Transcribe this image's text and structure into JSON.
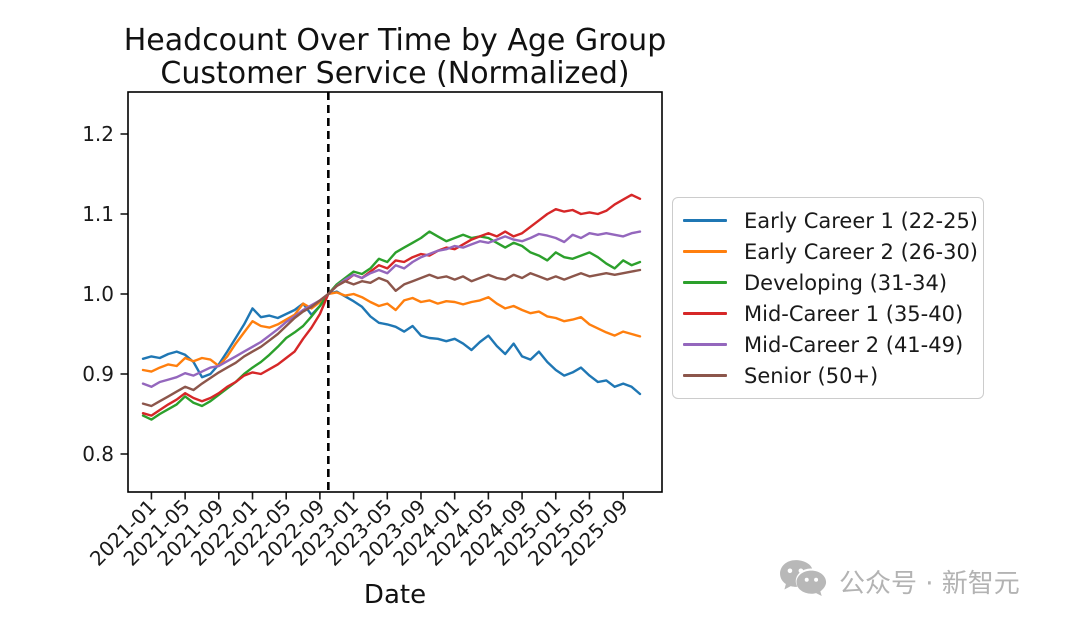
{
  "watermark": {
    "text": "公众号 · 新智元",
    "color": "#b3b3b3"
  },
  "chart_data": {
    "type": "line",
    "title": "Headcount Over Time by Age Group",
    "subtitle": "Customer Service (Normalized)",
    "xlabel": "Date",
    "ylabel": "",
    "ylim": [
      0.75,
      1.25
    ],
    "yticks": [
      0.8,
      0.9,
      1.0,
      1.1,
      1.2
    ],
    "xtick_labels": [
      "2021-01",
      "2021-05",
      "2021-09",
      "2022-01",
      "2022-05",
      "2022-09",
      "2023-01",
      "2023-05",
      "2023-09",
      "2024-01",
      "2024-05",
      "2024-09",
      "2025-01",
      "2025-05",
      "2025-09"
    ],
    "x": [
      "2020-12",
      "2021-01",
      "2021-02",
      "2021-03",
      "2021-04",
      "2021-05",
      "2021-06",
      "2021-07",
      "2021-08",
      "2021-09",
      "2021-10",
      "2021-11",
      "2021-12",
      "2022-01",
      "2022-02",
      "2022-03",
      "2022-04",
      "2022-05",
      "2022-06",
      "2022-07",
      "2022-08",
      "2022-09",
      "2022-10",
      "2022-11",
      "2022-12",
      "2023-01",
      "2023-02",
      "2023-03",
      "2023-04",
      "2023-05",
      "2023-06",
      "2023-07",
      "2023-08",
      "2023-09",
      "2023-10",
      "2023-11",
      "2023-12",
      "2024-01",
      "2024-02",
      "2024-03",
      "2024-04",
      "2024-05",
      "2024-06",
      "2024-07",
      "2024-08",
      "2024-09",
      "2024-10",
      "2024-11",
      "2024-12",
      "2025-01",
      "2025-02",
      "2025-03",
      "2025-04",
      "2025-05",
      "2025-06",
      "2025-07",
      "2025-08",
      "2025-09",
      "2025-10",
      "2025-11"
    ],
    "vline": {
      "x": "2022-10",
      "style": "dashed",
      "color": "#000000"
    },
    "grid": false,
    "legend_position": "outside-right",
    "series": [
      {
        "name": "Early Career 1 (22-25)",
        "color": "#1f77b4",
        "values": [
          0.919,
          0.922,
          0.92,
          0.925,
          0.928,
          0.924,
          0.915,
          0.896,
          0.9,
          0.912,
          0.928,
          0.945,
          0.962,
          0.982,
          0.971,
          0.973,
          0.97,
          0.975,
          0.98,
          0.988,
          0.974,
          0.985,
          1.0,
          1.003,
          0.997,
          0.991,
          0.984,
          0.972,
          0.964,
          0.962,
          0.959,
          0.953,
          0.96,
          0.948,
          0.945,
          0.944,
          0.941,
          0.944,
          0.938,
          0.93,
          0.94,
          0.948,
          0.935,
          0.925,
          0.938,
          0.922,
          0.918,
          0.928,
          0.915,
          0.905,
          0.898,
          0.902,
          0.908,
          0.898,
          0.89,
          0.892,
          0.884,
          0.888,
          0.884,
          0.875
        ]
      },
      {
        "name": "Early Career 2 (26-30)",
        "color": "#ff7f0e",
        "values": [
          0.905,
          0.903,
          0.908,
          0.912,
          0.91,
          0.92,
          0.916,
          0.92,
          0.918,
          0.91,
          0.922,
          0.938,
          0.952,
          0.966,
          0.96,
          0.958,
          0.962,
          0.968,
          0.974,
          0.988,
          0.982,
          0.99,
          1.0,
          1.002,
          0.998,
          1.0,
          0.996,
          0.99,
          0.985,
          0.988,
          0.98,
          0.992,
          0.995,
          0.99,
          0.992,
          0.988,
          0.991,
          0.99,
          0.987,
          0.99,
          0.992,
          0.996,
          0.988,
          0.982,
          0.985,
          0.98,
          0.976,
          0.978,
          0.972,
          0.97,
          0.966,
          0.968,
          0.971,
          0.962,
          0.957,
          0.952,
          0.948,
          0.953,
          0.95,
          0.947
        ]
      },
      {
        "name": "Developing (31-34)",
        "color": "#2ca02c",
        "values": [
          0.848,
          0.843,
          0.85,
          0.856,
          0.862,
          0.872,
          0.864,
          0.86,
          0.866,
          0.874,
          0.882,
          0.89,
          0.9,
          0.908,
          0.915,
          0.924,
          0.934,
          0.945,
          0.952,
          0.96,
          0.972,
          0.985,
          1.0,
          1.012,
          1.02,
          1.028,
          1.025,
          1.032,
          1.044,
          1.04,
          1.052,
          1.058,
          1.064,
          1.07,
          1.078,
          1.072,
          1.066,
          1.07,
          1.074,
          1.07,
          1.072,
          1.07,
          1.064,
          1.058,
          1.064,
          1.06,
          1.052,
          1.048,
          1.042,
          1.052,
          1.046,
          1.044,
          1.048,
          1.052,
          1.046,
          1.038,
          1.032,
          1.042,
          1.036,
          1.04
        ]
      },
      {
        "name": "Mid-Career 1 (35-40)",
        "color": "#d62728",
        "values": [
          0.851,
          0.848,
          0.855,
          0.862,
          0.868,
          0.876,
          0.87,
          0.866,
          0.87,
          0.876,
          0.884,
          0.89,
          0.898,
          0.902,
          0.9,
          0.906,
          0.912,
          0.92,
          0.928,
          0.944,
          0.958,
          0.975,
          1.0,
          1.01,
          1.016,
          1.024,
          1.02,
          1.028,
          1.036,
          1.032,
          1.042,
          1.04,
          1.046,
          1.05,
          1.048,
          1.054,
          1.058,
          1.056,
          1.062,
          1.068,
          1.072,
          1.076,
          1.072,
          1.078,
          1.072,
          1.076,
          1.084,
          1.092,
          1.1,
          1.106,
          1.103,
          1.105,
          1.1,
          1.102,
          1.1,
          1.104,
          1.112,
          1.118,
          1.124,
          1.119
        ]
      },
      {
        "name": "Mid-Career 2 (41-49)",
        "color": "#9467bd",
        "values": [
          0.888,
          0.884,
          0.89,
          0.893,
          0.896,
          0.901,
          0.898,
          0.903,
          0.908,
          0.91,
          0.916,
          0.922,
          0.928,
          0.934,
          0.94,
          0.948,
          0.956,
          0.965,
          0.972,
          0.98,
          0.986,
          0.992,
          1.0,
          1.01,
          1.018,
          1.024,
          1.02,
          1.026,
          1.03,
          1.026,
          1.036,
          1.032,
          1.04,
          1.046,
          1.05,
          1.054,
          1.056,
          1.06,
          1.058,
          1.062,
          1.066,
          1.064,
          1.068,
          1.072,
          1.068,
          1.066,
          1.07,
          1.075,
          1.073,
          1.07,
          1.065,
          1.074,
          1.07,
          1.076,
          1.074,
          1.076,
          1.074,
          1.072,
          1.076,
          1.078
        ]
      },
      {
        "name": "Senior (50+)",
        "color": "#8c564b",
        "values": [
          0.863,
          0.86,
          0.866,
          0.872,
          0.878,
          0.884,
          0.88,
          0.888,
          0.895,
          0.902,
          0.908,
          0.914,
          0.922,
          0.928,
          0.934,
          0.942,
          0.95,
          0.96,
          0.97,
          0.978,
          0.984,
          0.992,
          1.0,
          1.01,
          1.016,
          1.012,
          1.016,
          1.014,
          1.02,
          1.016,
          1.004,
          1.012,
          1.016,
          1.02,
          1.024,
          1.02,
          1.022,
          1.018,
          1.022,
          1.016,
          1.02,
          1.024,
          1.02,
          1.018,
          1.024,
          1.02,
          1.026,
          1.022,
          1.018,
          1.022,
          1.018,
          1.022,
          1.026,
          1.022,
          1.024,
          1.026,
          1.024,
          1.026,
          1.028,
          1.03
        ]
      }
    ]
  }
}
